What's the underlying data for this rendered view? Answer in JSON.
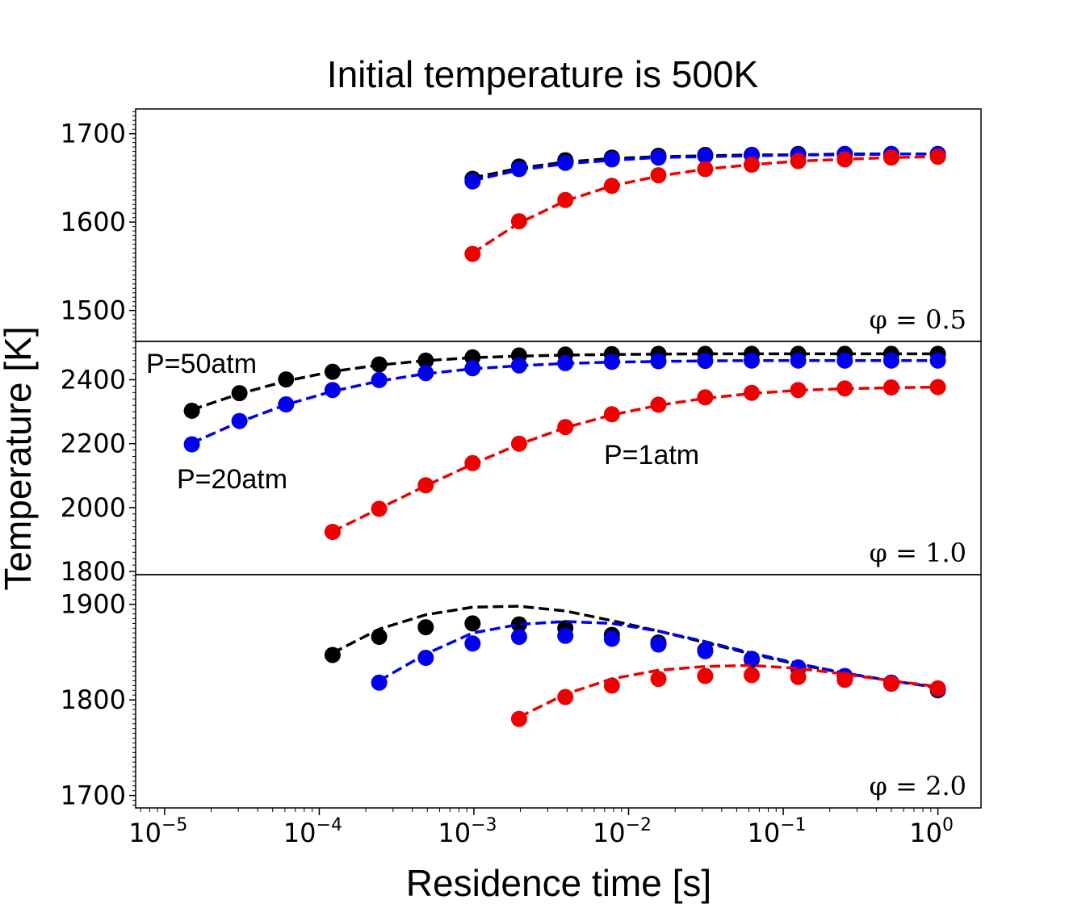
{
  "title": "Initial temperature is 500K",
  "xlabel": "Residence time [s]",
  "ylabel": "Temperature [K]",
  "x_tick_labels": [
    {
      "base": "10",
      "exp": "−5"
    },
    {
      "base": "10",
      "exp": "−4"
    },
    {
      "base": "10",
      "exp": "−3"
    },
    {
      "base": "10",
      "exp": "−2"
    },
    {
      "base": "10",
      "exp": "−1"
    },
    {
      "base": "10",
      "exp": "0"
    }
  ],
  "annotations": {
    "p50": "P=50atm",
    "p20": "P=20atm",
    "p1": "P=1atm"
  },
  "colors": {
    "p50": "#000000",
    "p20": "#0000ee",
    "p1": "#ee0000"
  },
  "chart_data": [
    {
      "type": "line",
      "panel_label": "φ = 0.5",
      "xscale": "log",
      "xlim": [
        6.5e-06,
        1.9
      ],
      "ylim": [
        1465,
        1728
      ],
      "yticks": [
        1500,
        1600,
        1700
      ],
      "ytick_labels": [
        "1500",
        "1600",
        "1700"
      ],
      "series": [
        {
          "key": "p50",
          "style": "markers+dashed",
          "points": [
            [
              0.00098,
              1649
            ],
            [
              0.00196,
              1663
            ],
            [
              0.0039,
              1670
            ],
            [
              0.0078,
              1673
            ],
            [
              0.0156,
              1675
            ],
            [
              0.0313,
              1676
            ],
            [
              0.0625,
              1676
            ],
            [
              0.125,
              1677
            ],
            [
              0.25,
              1677
            ],
            [
              0.5,
              1677
            ],
            [
              1.0,
              1677
            ]
          ],
          "curve": [
            [
              0.00098,
              1650
            ],
            [
              0.00196,
              1661
            ],
            [
              0.0039,
              1668
            ],
            [
              0.0078,
              1672
            ],
            [
              0.0156,
              1674
            ],
            [
              0.0313,
              1675
            ],
            [
              0.0625,
              1676
            ],
            [
              0.125,
              1676
            ],
            [
              0.25,
              1677
            ],
            [
              0.5,
              1677
            ],
            [
              1.0,
              1677
            ]
          ]
        },
        {
          "key": "p20",
          "style": "markers+dashed",
          "points": [
            [
              0.00098,
              1646
            ],
            [
              0.00196,
              1660
            ],
            [
              0.0039,
              1667
            ],
            [
              0.0078,
              1671
            ],
            [
              0.0156,
              1673
            ],
            [
              0.0313,
              1675
            ],
            [
              0.0625,
              1676
            ],
            [
              0.125,
              1676
            ],
            [
              0.25,
              1677
            ],
            [
              0.5,
              1677
            ],
            [
              1.0,
              1677
            ]
          ],
          "curve": [
            [
              0.00098,
              1647
            ],
            [
              0.00196,
              1659
            ],
            [
              0.0039,
              1666
            ],
            [
              0.0078,
              1670
            ],
            [
              0.0156,
              1673
            ],
            [
              0.0313,
              1674
            ],
            [
              0.0625,
              1675
            ],
            [
              0.125,
              1676
            ],
            [
              0.25,
              1676
            ],
            [
              0.5,
              1677
            ],
            [
              1.0,
              1677
            ]
          ]
        },
        {
          "key": "p1",
          "style": "markers+dashed",
          "points": [
            [
              0.00098,
              1564
            ],
            [
              0.00196,
              1601
            ],
            [
              0.0039,
              1625
            ],
            [
              0.0078,
              1641
            ],
            [
              0.0156,
              1653
            ],
            [
              0.0313,
              1660
            ],
            [
              0.0625,
              1665
            ],
            [
              0.125,
              1669
            ],
            [
              0.25,
              1671
            ],
            [
              0.5,
              1673
            ],
            [
              1.0,
              1674
            ]
          ],
          "curve": [
            [
              0.00098,
              1565
            ],
            [
              0.00196,
              1599
            ],
            [
              0.0039,
              1624
            ],
            [
              0.0078,
              1641
            ],
            [
              0.0156,
              1652
            ],
            [
              0.0313,
              1660
            ],
            [
              0.0625,
              1665
            ],
            [
              0.125,
              1669
            ],
            [
              0.25,
              1671
            ],
            [
              0.5,
              1673
            ],
            [
              1.0,
              1674
            ]
          ]
        }
      ]
    },
    {
      "type": "line",
      "panel_label": "φ = 1.0",
      "xscale": "log",
      "xlim": [
        6.5e-06,
        1.9
      ],
      "ylim": [
        1790,
        2520
      ],
      "yticks": [
        1800,
        2000,
        2200,
        2400
      ],
      "ytick_labels": [
        "1800",
        "2000",
        "2200",
        "2400"
      ],
      "series": [
        {
          "key": "p50",
          "style": "markers+dashed",
          "points": [
            [
              1.5e-05,
              2303
            ],
            [
              3.05e-05,
              2358
            ],
            [
              6.1e-05,
              2401
            ],
            [
              0.000122,
              2425
            ],
            [
              0.000244,
              2448
            ],
            [
              0.000488,
              2460
            ],
            [
              0.00098,
              2470
            ],
            [
              0.00196,
              2476
            ],
            [
              0.0039,
              2479
            ],
            [
              0.0078,
              2480
            ],
            [
              0.0156,
              2481
            ],
            [
              0.0313,
              2481
            ],
            [
              0.0625,
              2481
            ],
            [
              0.125,
              2481
            ],
            [
              0.25,
              2481
            ],
            [
              0.5,
              2481
            ],
            [
              1.0,
              2481
            ]
          ],
          "curve": [
            [
              1.5e-05,
              2306
            ],
            [
              3.05e-05,
              2356
            ],
            [
              6.1e-05,
              2396
            ],
            [
              0.000122,
              2426
            ],
            [
              0.000244,
              2446
            ],
            [
              0.000488,
              2460
            ],
            [
              0.00098,
              2469
            ],
            [
              0.00196,
              2474
            ],
            [
              0.0039,
              2477
            ],
            [
              0.0078,
              2479
            ],
            [
              0.0156,
              2480
            ],
            [
              0.0313,
              2481
            ],
            [
              0.0625,
              2481
            ],
            [
              0.125,
              2481
            ],
            [
              0.25,
              2481
            ],
            [
              0.5,
              2481
            ],
            [
              1.0,
              2481
            ]
          ]
        },
        {
          "key": "p20",
          "style": "markers+dashed",
          "points": [
            [
              1.5e-05,
              2198
            ],
            [
              3.05e-05,
              2271
            ],
            [
              6.1e-05,
              2323
            ],
            [
              0.000122,
              2368
            ],
            [
              0.000244,
              2399
            ],
            [
              0.000488,
              2421
            ],
            [
              0.00098,
              2436
            ],
            [
              0.00196,
              2445
            ],
            [
              0.0039,
              2452
            ],
            [
              0.0078,
              2456
            ],
            [
              0.0156,
              2458
            ],
            [
              0.0313,
              2459
            ],
            [
              0.0625,
              2460
            ],
            [
              0.125,
              2460
            ],
            [
              0.25,
              2460
            ],
            [
              0.5,
              2460
            ],
            [
              1.0,
              2460
            ]
          ],
          "curve": [
            [
              1.5e-05,
              2202
            ],
            [
              3.05e-05,
              2268
            ],
            [
              6.1e-05,
              2322
            ],
            [
              0.000122,
              2364
            ],
            [
              0.000244,
              2396
            ],
            [
              0.000488,
              2419
            ],
            [
              0.00098,
              2434
            ],
            [
              0.00196,
              2444
            ],
            [
              0.0039,
              2451
            ],
            [
              0.0078,
              2455
            ],
            [
              0.0156,
              2457
            ],
            [
              0.0313,
              2459
            ],
            [
              0.0625,
              2460
            ],
            [
              0.125,
              2460
            ],
            [
              0.25,
              2460
            ],
            [
              0.5,
              2460
            ],
            [
              1.0,
              2460
            ]
          ]
        },
        {
          "key": "p1",
          "style": "markers+dashed",
          "points": [
            [
              0.000122,
              1924
            ],
            [
              0.000244,
              1996
            ],
            [
              0.000488,
              2070
            ],
            [
              0.00098,
              2139
            ],
            [
              0.00196,
              2200
            ],
            [
              0.0039,
              2252
            ],
            [
              0.0078,
              2292
            ],
            [
              0.0156,
              2322
            ],
            [
              0.0313,
              2345
            ],
            [
              0.0625,
              2359
            ],
            [
              0.125,
              2368
            ],
            [
              0.25,
              2373
            ],
            [
              0.5,
              2376
            ],
            [
              1.0,
              2377
            ]
          ],
          "curve": [
            [
              0.000122,
              1925
            ],
            [
              0.000244,
              1997
            ],
            [
              0.000488,
              2068
            ],
            [
              0.00098,
              2136
            ],
            [
              0.00196,
              2198
            ],
            [
              0.0039,
              2250
            ],
            [
              0.0078,
              2290
            ],
            [
              0.0156,
              2320
            ],
            [
              0.0313,
              2342
            ],
            [
              0.0625,
              2357
            ],
            [
              0.125,
              2367
            ],
            [
              0.25,
              2372
            ],
            [
              0.5,
              2375
            ],
            [
              1.0,
              2377
            ]
          ]
        }
      ]
    },
    {
      "type": "line",
      "panel_label": "φ = 2.0",
      "xscale": "log",
      "xlim": [
        6.5e-06,
        1.9
      ],
      "ylim": [
        1687,
        1931
      ],
      "yticks": [
        1700,
        1800,
        1900
      ],
      "ytick_labels": [
        "1700",
        "1800",
        "1900"
      ],
      "series": [
        {
          "key": "p50",
          "style": "markers+dashed",
          "points": [
            [
              0.000122,
              1847
            ],
            [
              0.000244,
              1866
            ],
            [
              0.000488,
              1876
            ],
            [
              0.00098,
              1880
            ],
            [
              0.00196,
              1879
            ],
            [
              0.0039,
              1875
            ],
            [
              0.0078,
              1868
            ],
            [
              0.0156,
              1860
            ],
            [
              0.0313,
              1852
            ],
            [
              0.0625,
              1842
            ],
            [
              0.125,
              1833
            ],
            [
              0.25,
              1824
            ],
            [
              0.5,
              1817
            ],
            [
              1.0,
              1810
            ]
          ],
          "curve": [
            [
              0.000122,
              1849
            ],
            [
              0.000244,
              1874
            ],
            [
              0.000488,
              1889
            ],
            [
              0.00098,
              1897
            ],
            [
              0.00196,
              1898
            ],
            [
              0.0039,
              1893
            ],
            [
              0.0078,
              1883
            ],
            [
              0.0156,
              1872
            ],
            [
              0.0313,
              1860
            ],
            [
              0.0625,
              1848
            ],
            [
              0.125,
              1837
            ],
            [
              0.25,
              1828
            ],
            [
              0.5,
              1820
            ],
            [
              1.0,
              1813
            ]
          ]
        },
        {
          "key": "p20",
          "style": "markers+dashed",
          "points": [
            [
              0.000244,
              1818
            ],
            [
              0.000488,
              1844
            ],
            [
              0.00098,
              1859
            ],
            [
              0.00196,
              1866
            ],
            [
              0.0039,
              1867
            ],
            [
              0.0078,
              1864
            ],
            [
              0.0156,
              1858
            ],
            [
              0.0313,
              1851
            ],
            [
              0.0625,
              1843
            ],
            [
              0.125,
              1834
            ],
            [
              0.25,
              1825
            ],
            [
              0.5,
              1818
            ],
            [
              1.0,
              1811
            ]
          ],
          "curve": [
            [
              0.000244,
              1820
            ],
            [
              0.000488,
              1848
            ],
            [
              0.00098,
              1870
            ],
            [
              0.00196,
              1879
            ],
            [
              0.0039,
              1882
            ],
            [
              0.0078,
              1880
            ],
            [
              0.0156,
              1872
            ],
            [
              0.0313,
              1861
            ],
            [
              0.0625,
              1849
            ],
            [
              0.125,
              1838
            ],
            [
              0.25,
              1828
            ],
            [
              0.5,
              1820
            ],
            [
              1.0,
              1813
            ]
          ]
        },
        {
          "key": "p1",
          "style": "markers+dashed",
          "points": [
            [
              0.00196,
              1780
            ],
            [
              0.0039,
              1803
            ],
            [
              0.0078,
              1815
            ],
            [
              0.0156,
              1822
            ],
            [
              0.0313,
              1825
            ],
            [
              0.0625,
              1826
            ],
            [
              0.125,
              1824
            ],
            [
              0.25,
              1821
            ],
            [
              0.5,
              1817
            ],
            [
              1.0,
              1812
            ]
          ],
          "curve": [
            [
              0.00196,
              1782
            ],
            [
              0.0039,
              1806
            ],
            [
              0.0078,
              1822
            ],
            [
              0.0156,
              1831
            ],
            [
              0.0313,
              1835
            ],
            [
              0.0625,
              1836
            ],
            [
              0.125,
              1833
            ],
            [
              0.25,
              1827
            ],
            [
              0.5,
              1820
            ],
            [
              1.0,
              1814
            ]
          ]
        }
      ]
    }
  ]
}
